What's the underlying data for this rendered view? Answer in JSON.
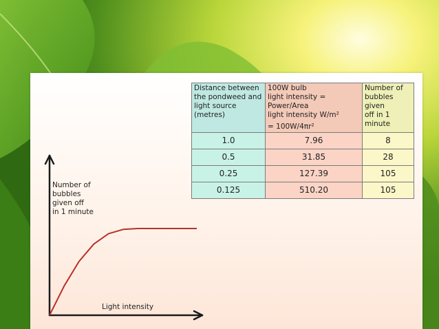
{
  "table": {
    "headers": [
      [
        "Distance between",
        "the pondweed and",
        "light source (metres)"
      ],
      [
        "100W bulb",
        "light intensity = Power/Area",
        "light intensity W/m²",
        "= 100W/4πr²"
      ],
      [
        "Number of",
        "bubbles given",
        "off in 1 minute"
      ]
    ],
    "rows": [
      [
        "1.0",
        "7.96",
        "8"
      ],
      [
        "0.5",
        "31.85",
        "28"
      ],
      [
        "0.25",
        "127.39",
        "105"
      ],
      [
        "0.125",
        "510.20",
        "105"
      ]
    ]
  },
  "chart_data": {
    "type": "line",
    "xlabel": "Light intensity",
    "ylabel": [
      "Number of",
      "bubbles",
      "given off",
      "in 1 minute"
    ],
    "series": [
      {
        "x": [
          0,
          10,
          20,
          30,
          40,
          50,
          60,
          70,
          80,
          100
        ],
        "values": [
          0,
          34,
          62,
          82,
          94,
          99,
          100,
          100,
          100,
          100
        ]
      }
    ],
    "colors": {
      "curve": "#b5312b",
      "axis": "#1a1a1a"
    }
  }
}
